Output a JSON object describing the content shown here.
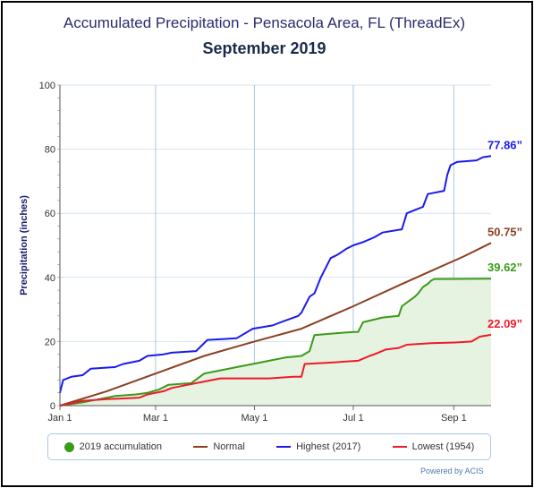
{
  "title": "Accumulated Precipitation - Pensacola Area, FL (ThreadEx)",
  "subtitle": "September 2019",
  "credit": "Powered by ACIS",
  "chart_data": {
    "type": "line",
    "xlabel": "",
    "ylabel": "Precipitation (inches)",
    "ylim": [
      0,
      100
    ],
    "yticks": [
      0,
      20,
      40,
      60,
      80,
      100
    ],
    "xticks": [
      {
        "label": "Jan 1",
        "day": 1
      },
      {
        "label": "Mar 1",
        "day": 60
      },
      {
        "label": "May 1",
        "day": 121
      },
      {
        "label": "Jul 1",
        "day": 182
      },
      {
        "label": "Sep 1",
        "day": 244
      }
    ],
    "xlim": [
      1,
      267
    ],
    "grid": true,
    "legend_position": "bottom",
    "series": [
      {
        "name": "2019 accumulation",
        "color": "#3a9a1a",
        "fill": "#e6f3e0",
        "end_label": "39.62”",
        "points": [
          [
            1,
            0
          ],
          [
            15,
            1
          ],
          [
            25,
            2
          ],
          [
            35,
            3
          ],
          [
            48,
            3.5
          ],
          [
            55,
            4
          ],
          [
            62,
            5
          ],
          [
            68,
            6.5
          ],
          [
            82,
            7
          ],
          [
            90,
            10
          ],
          [
            100,
            11
          ],
          [
            110,
            12
          ],
          [
            120,
            13
          ],
          [
            130,
            14
          ],
          [
            140,
            15
          ],
          [
            150,
            15.5
          ],
          [
            155,
            17
          ],
          [
            158,
            22
          ],
          [
            170,
            22.5
          ],
          [
            182,
            23
          ],
          [
            185,
            23
          ],
          [
            188,
            26
          ],
          [
            200,
            27.5
          ],
          [
            210,
            28
          ],
          [
            212,
            31
          ],
          [
            220,
            34
          ],
          [
            222,
            35
          ],
          [
            225,
            37
          ],
          [
            228,
            38
          ],
          [
            230,
            39
          ],
          [
            232,
            39.5
          ],
          [
            267,
            39.62
          ]
        ]
      },
      {
        "name": "Normal",
        "color": "#8b4020",
        "end_label": "50.75”",
        "points": [
          [
            1,
            0
          ],
          [
            30,
            4.5
          ],
          [
            60,
            10
          ],
          [
            90,
            15.5
          ],
          [
            121,
            20
          ],
          [
            150,
            24
          ],
          [
            182,
            31
          ],
          [
            210,
            37.5
          ],
          [
            230,
            42
          ],
          [
            250,
            46.5
          ],
          [
            267,
            50.75
          ]
        ]
      },
      {
        "name": "Highest (2017)",
        "color": "#1a1aee",
        "end_label": "77.86”",
        "points": [
          [
            1,
            4
          ],
          [
            3,
            8
          ],
          [
            8,
            9
          ],
          [
            15,
            9.5
          ],
          [
            20,
            11.5
          ],
          [
            35,
            12
          ],
          [
            40,
            13
          ],
          [
            50,
            14
          ],
          [
            55,
            15.5
          ],
          [
            65,
            16
          ],
          [
            70,
            16.5
          ],
          [
            85,
            17
          ],
          [
            92,
            20.5
          ],
          [
            110,
            21
          ],
          [
            120,
            24
          ],
          [
            132,
            25
          ],
          [
            140,
            26.5
          ],
          [
            148,
            28
          ],
          [
            150,
            29
          ],
          [
            155,
            34
          ],
          [
            158,
            35
          ],
          [
            162,
            40
          ],
          [
            168,
            46
          ],
          [
            172,
            47
          ],
          [
            175,
            48
          ],
          [
            178,
            49
          ],
          [
            182,
            50
          ],
          [
            188,
            51
          ],
          [
            195,
            52.5
          ],
          [
            200,
            54
          ],
          [
            212,
            55
          ],
          [
            215,
            60
          ],
          [
            220,
            61
          ],
          [
            225,
            62
          ],
          [
            228,
            66
          ],
          [
            238,
            67
          ],
          [
            240,
            72
          ],
          [
            242,
            75
          ],
          [
            246,
            76
          ],
          [
            258,
            76.5
          ],
          [
            262,
            77.5
          ],
          [
            267,
            77.86
          ]
        ]
      },
      {
        "name": "Lowest (1954)",
        "color": "#ee1a2a",
        "end_label": "22.09”",
        "points": [
          [
            1,
            0
          ],
          [
            15,
            1.5
          ],
          [
            30,
            2
          ],
          [
            50,
            2.5
          ],
          [
            55,
            3.5
          ],
          [
            65,
            4.5
          ],
          [
            70,
            5.5
          ],
          [
            80,
            6.5
          ],
          [
            90,
            7.5
          ],
          [
            100,
            8.5
          ],
          [
            110,
            8.5
          ],
          [
            130,
            8.5
          ],
          [
            145,
            9
          ],
          [
            150,
            9
          ],
          [
            152,
            13
          ],
          [
            170,
            13.5
          ],
          [
            185,
            14
          ],
          [
            192,
            15.5
          ],
          [
            195,
            16
          ],
          [
            202,
            17.5
          ],
          [
            210,
            18
          ],
          [
            215,
            19
          ],
          [
            230,
            19.5
          ],
          [
            245,
            19.7
          ],
          [
            255,
            20
          ],
          [
            260,
            21.5
          ],
          [
            267,
            22.09
          ]
        ]
      }
    ]
  }
}
